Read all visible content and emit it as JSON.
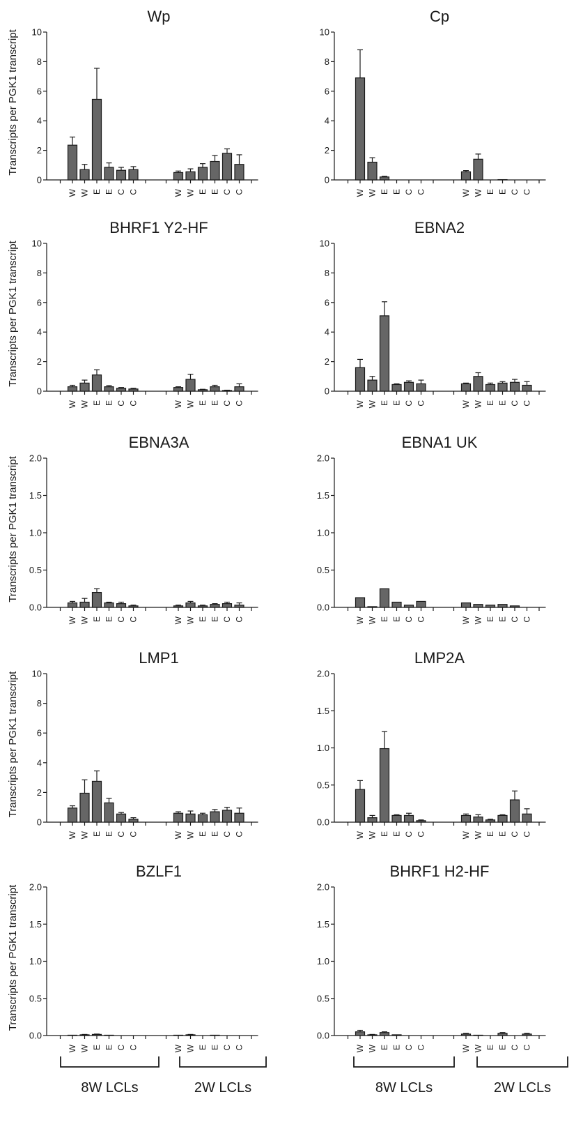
{
  "y_axis_label": "Transcripts per PGK1 transcript",
  "group_labels": [
    "8W LCLs",
    "2W LCLs"
  ],
  "chart_data": [
    {
      "type": "bar",
      "title": "Wp",
      "ylim": [
        0,
        10
      ],
      "yticks": [
        "0",
        "2",
        "4",
        "6",
        "8",
        "10"
      ],
      "categories": [
        "W",
        "W",
        "E",
        "E",
        "C",
        "C",
        "W",
        "W",
        "E",
        "E",
        "C",
        "C"
      ],
      "values": [
        2.35,
        0.7,
        5.45,
        0.85,
        0.65,
        0.7,
        0.5,
        0.55,
        0.85,
        1.25,
        1.8,
        1.05
      ],
      "errors": [
        0.55,
        0.35,
        2.1,
        0.3,
        0.2,
        0.2,
        0.1,
        0.2,
        0.25,
        0.4,
        0.3,
        0.65
      ]
    },
    {
      "type": "bar",
      "title": "Cp",
      "ylim": [
        0,
        10
      ],
      "yticks": [
        "0",
        "2",
        "4",
        "6",
        "8",
        "10"
      ],
      "categories": [
        "W",
        "W",
        "E",
        "E",
        "C",
        "C",
        "W",
        "W",
        "E",
        "E",
        "C",
        "C"
      ],
      "values": [
        6.9,
        1.2,
        0.2,
        0.0,
        0.0,
        0.0,
        0.55,
        1.4,
        0.0,
        0.02,
        0.0,
        0.0
      ],
      "errors": [
        1.9,
        0.3,
        0.05,
        0.0,
        0.0,
        0.0,
        0.08,
        0.35,
        0.0,
        0.0,
        0.0,
        0.0
      ]
    },
    {
      "type": "bar",
      "title": "BHRF1 Y2-HF",
      "ylim": [
        0,
        10
      ],
      "yticks": [
        "0",
        "2",
        "4",
        "6",
        "8",
        "10"
      ],
      "categories": [
        "W",
        "W",
        "E",
        "E",
        "C",
        "C",
        "W",
        "W",
        "E",
        "E",
        "C",
        "C"
      ],
      "values": [
        0.3,
        0.55,
        1.1,
        0.3,
        0.2,
        0.15,
        0.25,
        0.8,
        0.1,
        0.3,
        0.05,
        0.3
      ],
      "errors": [
        0.1,
        0.2,
        0.35,
        0.08,
        0.05,
        0.05,
        0.05,
        0.35,
        0.03,
        0.1,
        0.02,
        0.2
      ]
    },
    {
      "type": "bar",
      "title": "EBNA2",
      "ylim": [
        0,
        10
      ],
      "yticks": [
        "0",
        "2",
        "4",
        "6",
        "8",
        "10"
      ],
      "categories": [
        "W",
        "W",
        "E",
        "E",
        "C",
        "C",
        "W",
        "W",
        "E",
        "E",
        "C",
        "C"
      ],
      "values": [
        1.6,
        0.75,
        5.1,
        0.45,
        0.6,
        0.5,
        0.5,
        1.0,
        0.45,
        0.55,
        0.6,
        0.4
      ],
      "errors": [
        0.55,
        0.25,
        0.95,
        0.05,
        0.1,
        0.25,
        0.05,
        0.25,
        0.1,
        0.1,
        0.2,
        0.25
      ]
    },
    {
      "type": "bar",
      "title": "EBNA3A",
      "ylim": [
        0,
        2
      ],
      "yticks": [
        "0.0",
        "0.5",
        "1.0",
        "1.5",
        "2.0"
      ],
      "categories": [
        "W",
        "W",
        "E",
        "E",
        "C",
        "C",
        "W",
        "W",
        "E",
        "E",
        "C",
        "C"
      ],
      "values": [
        0.06,
        0.07,
        0.2,
        0.06,
        0.05,
        0.02,
        0.02,
        0.06,
        0.02,
        0.04,
        0.05,
        0.03
      ],
      "errors": [
        0.02,
        0.05,
        0.05,
        0.01,
        0.02,
        0.01,
        0.01,
        0.02,
        0.01,
        0.01,
        0.02,
        0.03
      ]
    },
    {
      "type": "bar",
      "title": "EBNA1 UK",
      "ylim": [
        0,
        2
      ],
      "yticks": [
        "0.0",
        "0.5",
        "1.0",
        "1.5",
        "2.0"
      ],
      "categories": [
        "W",
        "W",
        "E",
        "E",
        "C",
        "C",
        "W",
        "W",
        "E",
        "E",
        "C",
        "C"
      ],
      "values": [
        0.13,
        0.01,
        0.25,
        0.07,
        0.03,
        0.08,
        0.06,
        0.04,
        0.03,
        0.04,
        0.02,
        0.0
      ],
      "errors": [
        0.0,
        0.0,
        0.0,
        0.0,
        0.0,
        0.0,
        0.0,
        0.0,
        0.0,
        0.0,
        0.0,
        0.0
      ]
    },
    {
      "type": "bar",
      "title": "LMP1",
      "ylim": [
        0,
        10
      ],
      "yticks": [
        "0",
        "2",
        "4",
        "6",
        "8",
        "10"
      ],
      "categories": [
        "W",
        "W",
        "E",
        "E",
        "C",
        "C",
        "W",
        "W",
        "E",
        "E",
        "C",
        "C"
      ],
      "values": [
        0.95,
        1.95,
        2.75,
        1.3,
        0.55,
        0.2,
        0.6,
        0.55,
        0.5,
        0.7,
        0.8,
        0.6
      ],
      "errors": [
        0.15,
        0.9,
        0.7,
        0.3,
        0.1,
        0.1,
        0.1,
        0.2,
        0.1,
        0.15,
        0.2,
        0.35
      ]
    },
    {
      "type": "bar",
      "title": "LMP2A",
      "ylim": [
        0,
        2
      ],
      "yticks": [
        "0.0",
        "0.5",
        "1.0",
        "1.5",
        "2.0"
      ],
      "categories": [
        "W",
        "W",
        "E",
        "E",
        "C",
        "C",
        "W",
        "W",
        "E",
        "E",
        "C",
        "C"
      ],
      "values": [
        0.44,
        0.06,
        0.99,
        0.09,
        0.09,
        0.02,
        0.09,
        0.07,
        0.03,
        0.09,
        0.3,
        0.11
      ],
      "errors": [
        0.12,
        0.03,
        0.23,
        0.01,
        0.03,
        0.01,
        0.02,
        0.03,
        0.01,
        0.01,
        0.12,
        0.07
      ]
    },
    {
      "type": "bar",
      "title": "BZLF1",
      "ylim": [
        0,
        2
      ],
      "yticks": [
        "0.0",
        "0.5",
        "1.0",
        "1.5",
        "2.0"
      ],
      "categories": [
        "W",
        "W",
        "E",
        "E",
        "C",
        "C",
        "W",
        "W",
        "E",
        "E",
        "C",
        "C"
      ],
      "values": [
        0.005,
        0.01,
        0.015,
        0.005,
        0.0,
        0.0,
        0.005,
        0.01,
        0.0,
        0.005,
        0.0,
        0.0
      ],
      "errors": [
        0.0,
        0.005,
        0.005,
        0.0,
        0.0,
        0.0,
        0.0,
        0.005,
        0.0,
        0.0,
        0.0,
        0.0
      ]
    },
    {
      "type": "bar",
      "title": "BHRF1 H2-HF",
      "ylim": [
        0,
        2
      ],
      "yticks": [
        "0.0",
        "0.5",
        "1.0",
        "1.5",
        "2.0"
      ],
      "categories": [
        "W",
        "W",
        "E",
        "E",
        "C",
        "C",
        "W",
        "W",
        "E",
        "E",
        "C",
        "C"
      ],
      "values": [
        0.05,
        0.01,
        0.04,
        0.01,
        0.0,
        0.0,
        0.02,
        0.005,
        0.0,
        0.03,
        0.0,
        0.02
      ],
      "errors": [
        0.02,
        0.005,
        0.01,
        0.0,
        0.0,
        0.0,
        0.01,
        0.0,
        0.0,
        0.01,
        0.0,
        0.01
      ]
    }
  ]
}
